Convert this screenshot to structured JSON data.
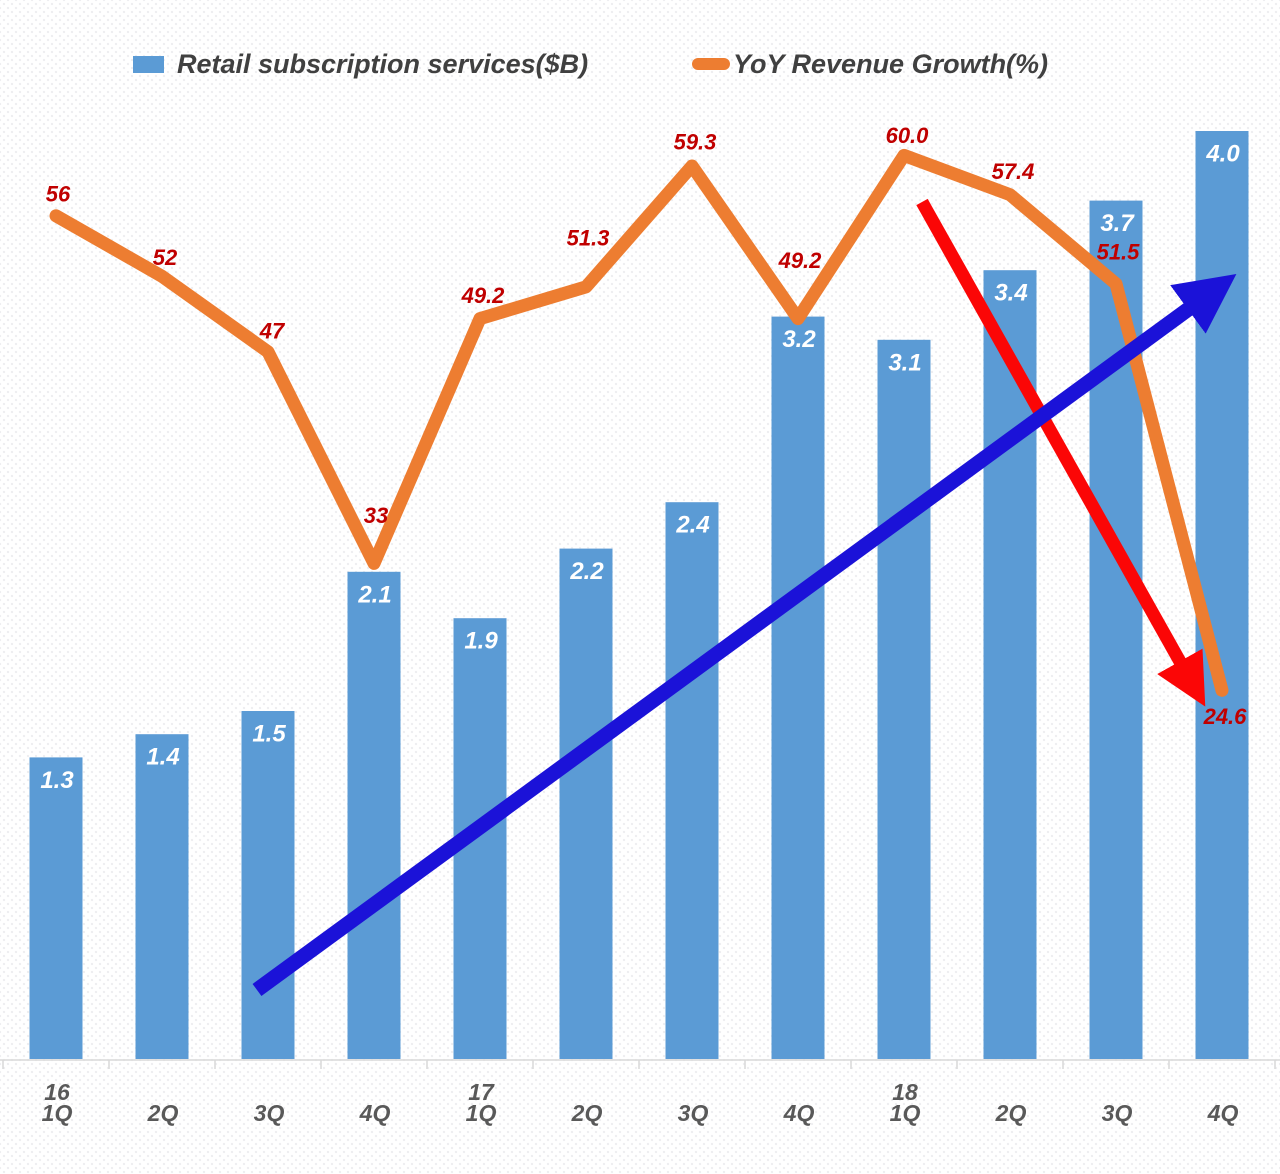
{
  "legend": {
    "bar_series_label": "Retail subscription services($B)",
    "line_series_label": "YoY Revenue Growth(%)"
  },
  "chart_data": {
    "type": "combo",
    "title": "",
    "categories": [
      "1Q",
      "2Q",
      "3Q",
      "4Q",
      "1Q",
      "2Q",
      "3Q",
      "4Q",
      "1Q",
      "2Q",
      "3Q",
      "4Q"
    ],
    "year_markers": [
      {
        "index": 0,
        "label": "16"
      },
      {
        "index": 4,
        "label": "17"
      },
      {
        "index": 8,
        "label": "18"
      }
    ],
    "series": [
      {
        "name": "Retail subscription services($B)",
        "type": "bar",
        "values": [
          1.3,
          1.4,
          1.5,
          2.1,
          1.9,
          2.2,
          2.4,
          3.2,
          3.1,
          3.4,
          3.7,
          4.0
        ],
        "labels": [
          "1.3",
          "1.4",
          "1.5",
          "2.1",
          "1.9",
          "2.2",
          "2.4",
          "3.2",
          "3.1",
          "3.4",
          "3.7",
          "4.0"
        ],
        "color": "#5B9BD5",
        "label_color": "#FFFFFF"
      },
      {
        "name": "YoY Revenue Growth(%)",
        "type": "line",
        "values": [
          56,
          52,
          47,
          33,
          49.2,
          51.3,
          59.3,
          49.2,
          60.0,
          57.4,
          51.5,
          24.6
        ],
        "labels": [
          "56",
          "52",
          "47",
          "33",
          "49.2",
          "51.3",
          "59.3",
          "49.2",
          "60.0",
          "57.4",
          "51.5",
          "24.6"
        ],
        "color": "#ED7D31",
        "label_color": "#C00000"
      }
    ],
    "annotations": [
      {
        "id": "downtrend-arrow",
        "shape": "arrow",
        "direction": "down-right",
        "color": "#FB0606"
      },
      {
        "id": "uptrend-arrow",
        "shape": "arrow",
        "direction": "up-right",
        "color": "#1B12D8"
      }
    ],
    "axis": {
      "line_color": "#D9D9D9",
      "label_color": "#595959"
    },
    "legend_text_color": "#404040",
    "grid": false,
    "legend_position": "top"
  }
}
